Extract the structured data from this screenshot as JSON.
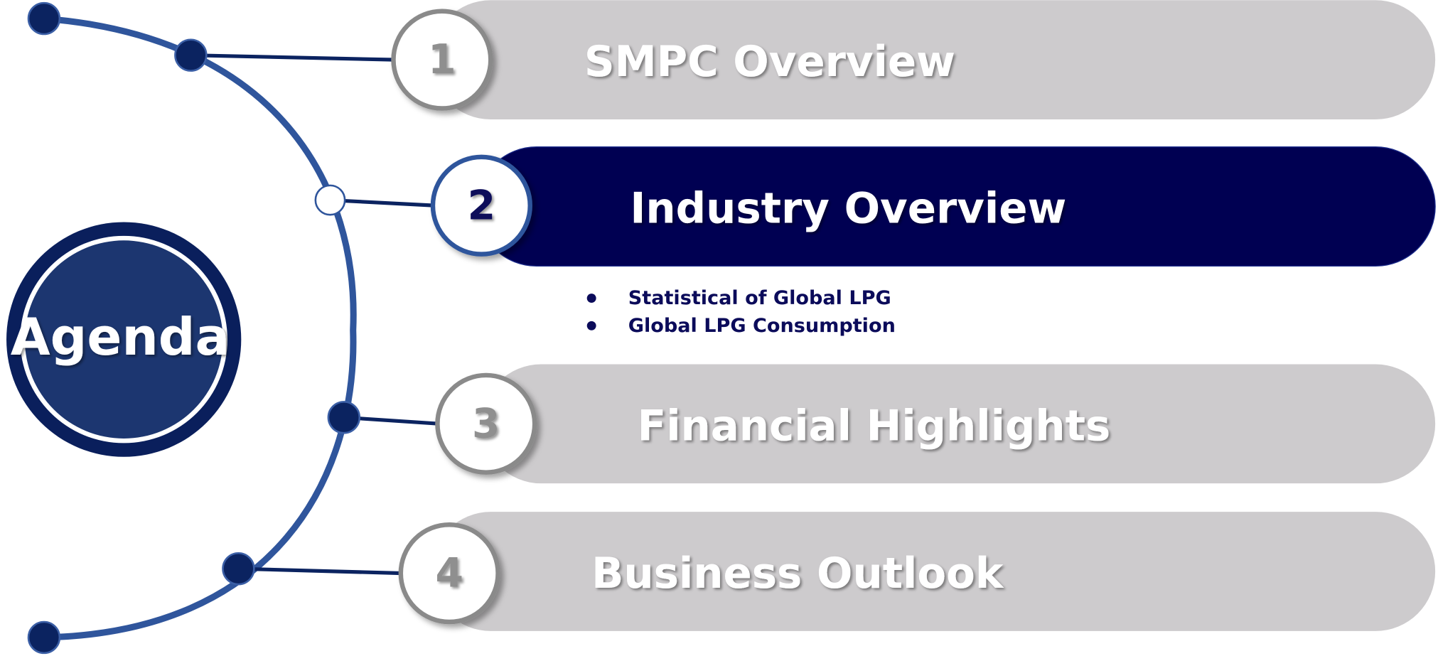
{
  "title": "Agenda",
  "items": [
    {
      "number": "1",
      "label": "SMPC Overview",
      "active": false
    },
    {
      "number": "2",
      "label": "Industry Overview",
      "active": true,
      "bullets": [
        "Statistical of Global LPG",
        "Global LPG Consumption"
      ]
    },
    {
      "number": "3",
      "label": "Financial Highlights",
      "active": false
    },
    {
      "number": "4",
      "label": "Business Outlook",
      "active": false
    }
  ]
}
